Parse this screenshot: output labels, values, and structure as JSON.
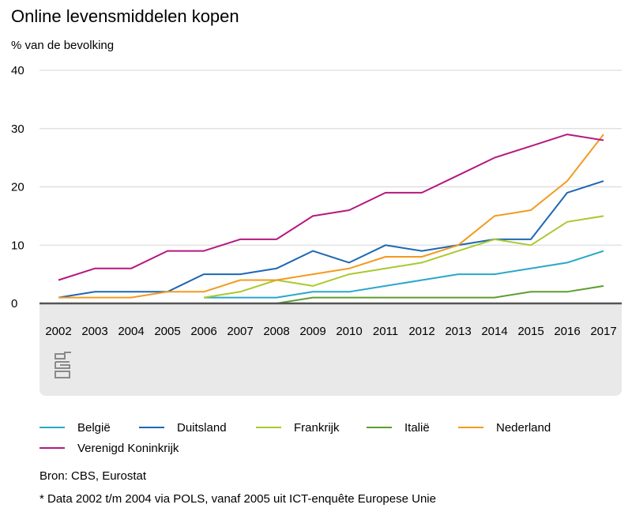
{
  "title": "Online levensmiddelen kopen",
  "unit": "% van de bevolking",
  "source": "Bron: CBS, Eurostat",
  "note": "* Data 2002 t/m 2004 via POLS, vanaf 2005 uit ICT-enquête Europese Unie",
  "logo_icon": "cbs-logo-icon",
  "chart_data": {
    "type": "line",
    "title": "Online levensmiddelen kopen",
    "xlabel": "",
    "ylabel": "% van de bevolking",
    "x": [
      2002,
      2003,
      2004,
      2005,
      2006,
      2007,
      2008,
      2009,
      2010,
      2011,
      2012,
      2013,
      2014,
      2015,
      2016,
      2017
    ],
    "ylim": [
      0,
      40
    ],
    "yticks": [
      0,
      10,
      20,
      30,
      40
    ],
    "grid": true,
    "legend_position": "bottom",
    "series": [
      {
        "name": "België",
        "color": "#2aa7c9",
        "values": [
          null,
          null,
          null,
          null,
          1,
          1,
          1,
          2,
          2,
          3,
          4,
          5,
          5,
          6,
          7,
          9
        ]
      },
      {
        "name": "Duitsland",
        "color": "#1f67b1",
        "values": [
          1,
          2,
          2,
          2,
          5,
          5,
          6,
          9,
          7,
          10,
          9,
          10,
          11,
          11,
          19,
          21
        ]
      },
      {
        "name": "Frankrijk",
        "color": "#a9c92e",
        "values": [
          null,
          null,
          null,
          null,
          1,
          2,
          4,
          3,
          5,
          6,
          7,
          9,
          11,
          10,
          14,
          15
        ]
      },
      {
        "name": "Italië",
        "color": "#5c9e2f",
        "values": [
          null,
          null,
          null,
          null,
          0,
          0,
          0,
          1,
          1,
          1,
          1,
          1,
          1,
          2,
          2,
          3
        ]
      },
      {
        "name": "Nederland",
        "color": "#f39a1f",
        "values": [
          1,
          1,
          1,
          2,
          2,
          4,
          4,
          5,
          6,
          8,
          8,
          10,
          15,
          16,
          21,
          29
        ]
      },
      {
        "name": "Verenigd Koninkrijk",
        "color": "#b5187f",
        "values": [
          4,
          6,
          6,
          9,
          9,
          11,
          11,
          15,
          16,
          19,
          19,
          22,
          25,
          27,
          29,
          28
        ]
      }
    ]
  }
}
